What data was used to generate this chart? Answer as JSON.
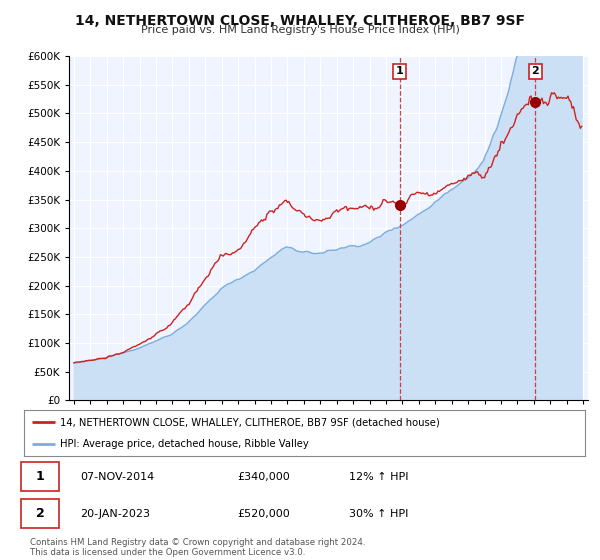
{
  "title": "14, NETHERTOWN CLOSE, WHALLEY, CLITHEROE, BB7 9SF",
  "subtitle": "Price paid vs. HM Land Registry's House Price Index (HPI)",
  "legend_label_1": "14, NETHERTOWN CLOSE, WHALLEY, CLITHEROE, BB7 9SF (detached house)",
  "legend_label_2": "HPI: Average price, detached house, Ribble Valley",
  "sale1_date": "07-NOV-2014",
  "sale1_price": 340000,
  "sale1_hpi": "12%",
  "sale2_date": "20-JAN-2023",
  "sale2_price": 520000,
  "sale2_hpi": "30%",
  "hpi_color": "#7aade0",
  "hpi_fill_color": "#cce0f5",
  "price_color": "#cc2222",
  "marker_color": "#990000",
  "sale1_year": 2014.85,
  "sale2_year": 2023.05,
  "footnote": "Contains HM Land Registry data © Crown copyright and database right 2024.\nThis data is licensed under the Open Government Licence v3.0.",
  "ylim_max": 600000,
  "xlim_min": 1994.7,
  "xlim_max": 2026.3,
  "background_color": "#ffffff",
  "plot_bg_color": "#f0f4ff"
}
